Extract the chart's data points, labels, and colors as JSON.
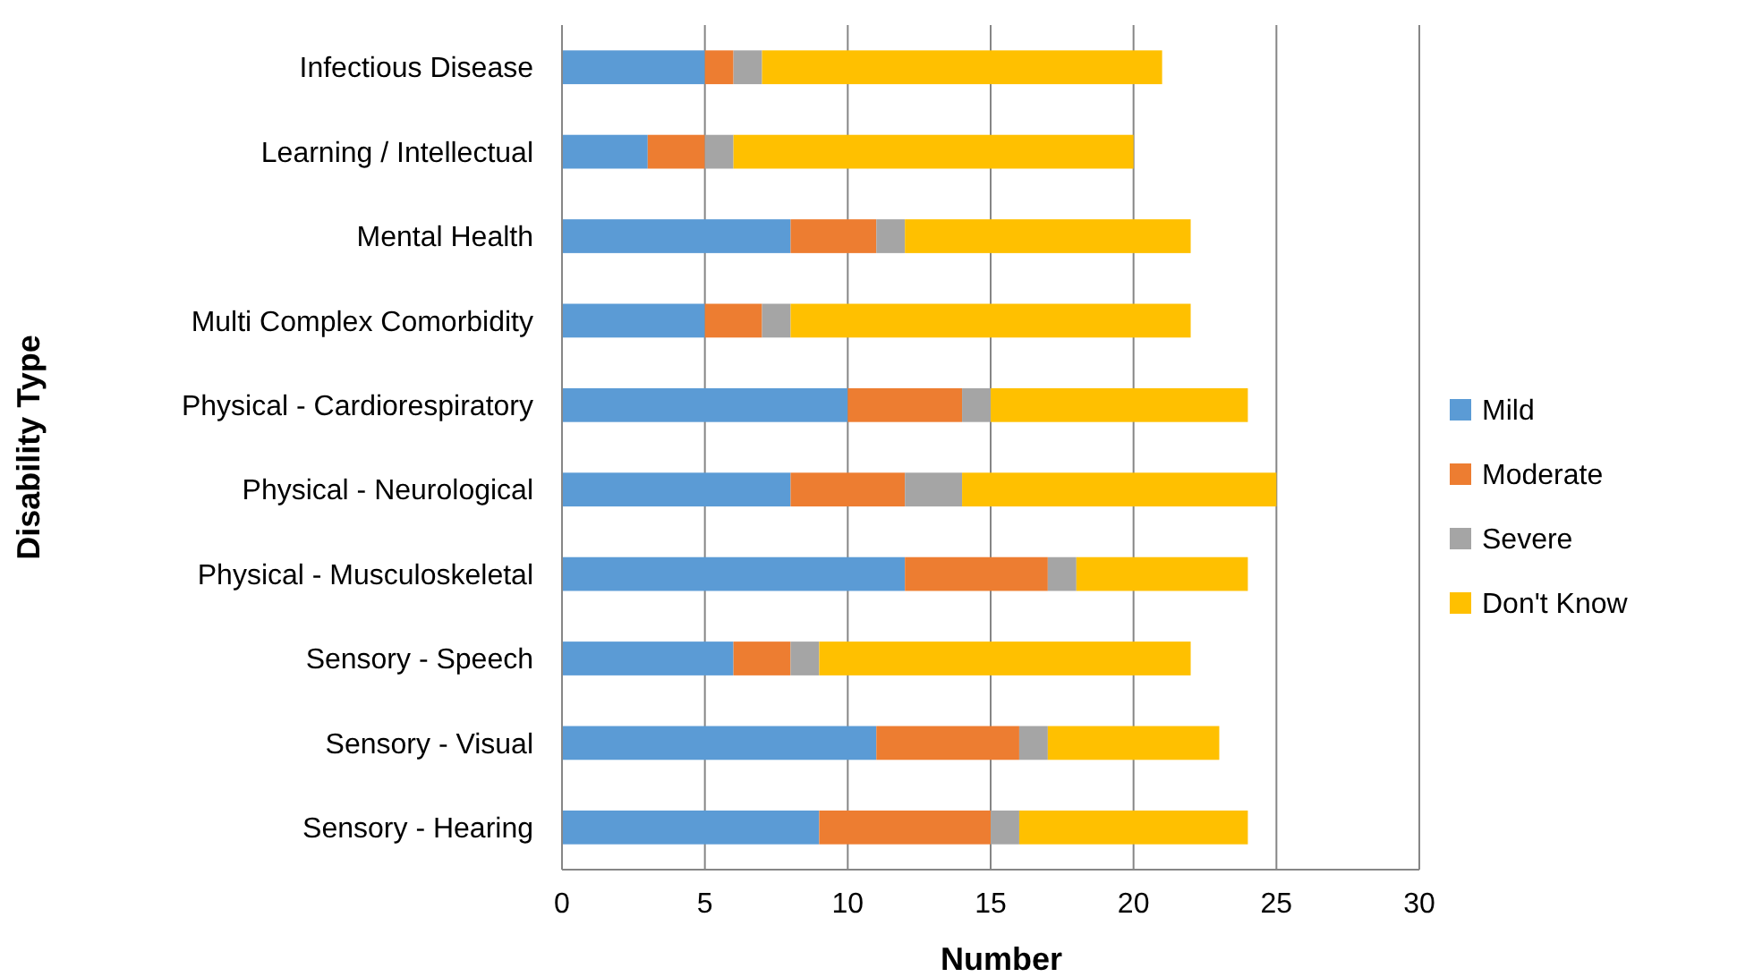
{
  "chart_data": {
    "type": "bar",
    "orientation": "horizontal",
    "stacked": true,
    "xlabel": "Number",
    "ylabel": "Disability Type",
    "categories": [
      "Infectious Disease",
      "Learning / Intellectual",
      "Mental Health",
      "Multi Complex Comorbidity",
      "Physical - Cardiorespiratory",
      "Physical - Neurological",
      "Physical - Musculoskeletal",
      "Sensory - Speech",
      "Sensory - Visual",
      "Sensory - Hearing"
    ],
    "series": [
      {
        "name": "Mild",
        "color": "#5b9bd5",
        "values": [
          5,
          3,
          8,
          5,
          10,
          8,
          12,
          6,
          11,
          9
        ]
      },
      {
        "name": "Moderate",
        "color": "#ed7d31",
        "values": [
          1,
          2,
          3,
          2,
          4,
          4,
          5,
          2,
          5,
          6
        ]
      },
      {
        "name": "Severe",
        "color": "#a5a5a5",
        "values": [
          1,
          1,
          1,
          1,
          1,
          2,
          1,
          1,
          1,
          1
        ]
      },
      {
        "name": "Don't Know",
        "color": "#ffc000",
        "values": [
          14,
          14,
          10,
          14,
          9,
          11,
          6,
          13,
          6,
          8
        ]
      }
    ],
    "xlim": [
      0,
      30
    ],
    "xticks": [
      0,
      5,
      10,
      15,
      20,
      25,
      30
    ],
    "grid": "x",
    "legend": "right"
  }
}
